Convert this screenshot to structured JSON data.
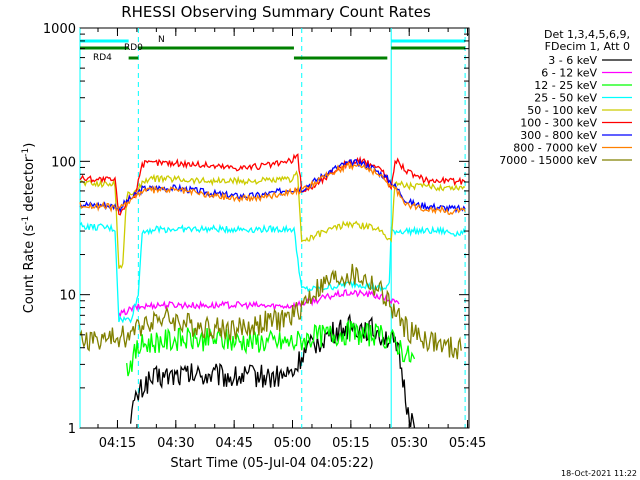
{
  "chart_data": {
    "type": "line",
    "title": "RHESSI Observing Summary Count Rates",
    "xlabel": "Start Time (05-Jul-04 04:05:22)",
    "ylabel_main": "Count Rate (s",
    "ylabel_sup1": "-1",
    "ylabel_mid": " detector",
    "ylabel_sup2": "-1",
    "ylabel_end": ")",
    "y_scale": "log",
    "ylim": [
      1,
      1000
    ],
    "x_unit": "minutes after 04:05:22",
    "xlim": [
      0,
      100
    ],
    "x_ticks": [
      {
        "label": "04:15",
        "x": 9.63
      },
      {
        "label": "04:30",
        "x": 24.63
      },
      {
        "label": "04:45",
        "x": 39.63
      },
      {
        "label": "05:00",
        "x": 54.63
      },
      {
        "label": "05:15",
        "x": 69.63
      },
      {
        "label": "05:30",
        "x": 84.63
      },
      {
        "label": "05:45",
        "x": 99.63
      }
    ],
    "y_ticks": [
      {
        "label": "1",
        "v": 1
      },
      {
        "label": "10",
        "v": 10
      },
      {
        "label": "100",
        "v": 100
      },
      {
        "label": "1000",
        "v": 1000
      }
    ],
    "legend_header": [
      "Det 1,3,4,5,6,9,",
      "FDecim 1, Att 0"
    ],
    "legend_position": "right",
    "series": [
      {
        "name": "3 - 6 keV",
        "color": "#000000",
        "points": [
          [
            13,
            1.3
          ],
          [
            14,
            1.5
          ],
          [
            15,
            1.8
          ],
          [
            17,
            2.2
          ],
          [
            20,
            2.4
          ],
          [
            25,
            2.5
          ],
          [
            30,
            2.5
          ],
          [
            35,
            2.5
          ],
          [
            40,
            2.4
          ],
          [
            45,
            2.5
          ],
          [
            50,
            2.4
          ],
          [
            55,
            2.6
          ],
          [
            57,
            3.5
          ],
          [
            60,
            4.2
          ],
          [
            63,
            4.8
          ],
          [
            66,
            5.3
          ],
          [
            69,
            5.7
          ],
          [
            72,
            5.7
          ],
          [
            75,
            5.5
          ],
          [
            78,
            5.0
          ],
          [
            80,
            4.5
          ],
          [
            82,
            3.5
          ],
          [
            84,
            1.5
          ],
          [
            86,
            1.0
          ]
        ]
      },
      {
        "name": "6 - 12 keV",
        "color": "#ff00ff",
        "points": [
          [
            10,
            7.0
          ],
          [
            12,
            7.5
          ],
          [
            14,
            8.0
          ],
          [
            17,
            8.2
          ],
          [
            20,
            8.4
          ],
          [
            25,
            8.4
          ],
          [
            30,
            8.3
          ],
          [
            35,
            8.3
          ],
          [
            40,
            8.4
          ],
          [
            45,
            8.3
          ],
          [
            50,
            8.2
          ],
          [
            55,
            8.3
          ],
          [
            57,
            8.6
          ],
          [
            60,
            9.0
          ],
          [
            63,
            9.5
          ],
          [
            66,
            10.0
          ],
          [
            69,
            10.3
          ],
          [
            72,
            10.2
          ],
          [
            75,
            10.0
          ],
          [
            78,
            9.5
          ],
          [
            80,
            9.0
          ],
          [
            82,
            8.5
          ]
        ]
      },
      {
        "name": "12 - 25 keV",
        "color": "#00ff00",
        "points": [
          [
            12,
            2.8
          ],
          [
            13,
            3.1
          ],
          [
            15,
            4.0
          ],
          [
            17,
            4.3
          ],
          [
            20,
            4.5
          ],
          [
            25,
            4.6
          ],
          [
            30,
            4.6
          ],
          [
            35,
            4.6
          ],
          [
            40,
            4.5
          ],
          [
            45,
            4.5
          ],
          [
            50,
            4.4
          ],
          [
            55,
            4.4
          ],
          [
            57,
            4.6
          ],
          [
            60,
            4.8
          ],
          [
            63,
            5.0
          ],
          [
            66,
            5.1
          ],
          [
            69,
            5.2
          ],
          [
            72,
            5.1
          ],
          [
            75,
            5.0
          ],
          [
            78,
            4.8
          ],
          [
            80,
            4.6
          ],
          [
            82,
            4.2
          ],
          [
            84,
            3.5
          ],
          [
            86,
            3.3
          ]
        ]
      },
      {
        "name": "25 - 50 keV",
        "color": "#00ffff",
        "points": [
          [
            0,
            33
          ],
          [
            3,
            32
          ],
          [
            6,
            32
          ],
          [
            9,
            31
          ],
          [
            10,
            6.5
          ],
          [
            13,
            6.5
          ],
          [
            15,
            10.0
          ],
          [
            16,
            30
          ],
          [
            20,
            31
          ],
          [
            25,
            31
          ],
          [
            30,
            31
          ],
          [
            35,
            31
          ],
          [
            40,
            31
          ],
          [
            45,
            31
          ],
          [
            50,
            31
          ],
          [
            55,
            31
          ],
          [
            57,
            11
          ],
          [
            60,
            11
          ],
          [
            65,
            11.5
          ],
          [
            69,
            12
          ],
          [
            72,
            12
          ],
          [
            75,
            11.5
          ],
          [
            78,
            11
          ],
          [
            79.5,
            12
          ],
          [
            80,
            30
          ],
          [
            85,
            30
          ],
          [
            90,
            30
          ],
          [
            93,
            30
          ],
          [
            96,
            29
          ],
          [
            99,
            29
          ]
        ]
      },
      {
        "name": "50 - 100 keV",
        "color": "#cccc00",
        "points": [
          [
            0,
            70
          ],
          [
            3,
            68
          ],
          [
            6,
            68
          ],
          [
            9,
            68
          ],
          [
            10,
            16
          ],
          [
            11,
            17
          ],
          [
            12,
            55
          ],
          [
            13,
            58
          ],
          [
            15,
            60
          ],
          [
            16,
            72
          ],
          [
            20,
            74
          ],
          [
            25,
            74
          ],
          [
            30,
            72
          ],
          [
            35,
            71
          ],
          [
            40,
            71
          ],
          [
            45,
            71
          ],
          [
            50,
            72
          ],
          [
            54,
            73
          ],
          [
            56,
            80
          ],
          [
            57,
            25
          ],
          [
            60,
            27
          ],
          [
            63,
            30
          ],
          [
            66,
            32
          ],
          [
            69,
            34
          ],
          [
            72,
            33
          ],
          [
            75,
            32
          ],
          [
            78,
            30
          ],
          [
            80,
            25
          ],
          [
            81,
            70
          ],
          [
            84,
            66
          ],
          [
            87,
            65
          ],
          [
            90,
            64
          ],
          [
            93,
            64
          ],
          [
            96,
            64
          ],
          [
            99,
            64
          ]
        ]
      },
      {
        "name": "100 - 300 keV",
        "color": "#ff0000",
        "points": [
          [
            0,
            75
          ],
          [
            3,
            74
          ],
          [
            6,
            73
          ],
          [
            9,
            72
          ],
          [
            10,
            40
          ],
          [
            11,
            42
          ],
          [
            12,
            52
          ],
          [
            14,
            55
          ],
          [
            16,
            95
          ],
          [
            20,
            98
          ],
          [
            25,
            97
          ],
          [
            30,
            95
          ],
          [
            35,
            92
          ],
          [
            40,
            90
          ],
          [
            45,
            91
          ],
          [
            50,
            95
          ],
          [
            54,
            100
          ],
          [
            56,
            110
          ],
          [
            57,
            60
          ],
          [
            60,
            65
          ],
          [
            63,
            75
          ],
          [
            66,
            88
          ],
          [
            69,
            97
          ],
          [
            72,
            100
          ],
          [
            75,
            95
          ],
          [
            78,
            85
          ],
          [
            80,
            60
          ],
          [
            81,
            105
          ],
          [
            84,
            85
          ],
          [
            87,
            75
          ],
          [
            90,
            72
          ],
          [
            93,
            72
          ],
          [
            96,
            71
          ],
          [
            99,
            70
          ]
        ]
      },
      {
        "name": "300 - 800 keV",
        "color": "#0000ff",
        "points": [
          [
            0,
            48
          ],
          [
            3,
            47
          ],
          [
            6,
            47
          ],
          [
            9,
            46
          ],
          [
            10,
            44
          ],
          [
            12,
            50
          ],
          [
            14,
            55
          ],
          [
            16,
            62
          ],
          [
            20,
            63
          ],
          [
            25,
            63
          ],
          [
            30,
            60
          ],
          [
            35,
            57
          ],
          [
            40,
            55
          ],
          [
            45,
            55
          ],
          [
            50,
            58
          ],
          [
            54,
            62
          ],
          [
            57,
            62
          ],
          [
            60,
            70
          ],
          [
            63,
            80
          ],
          [
            66,
            90
          ],
          [
            69,
            97
          ],
          [
            72,
            98
          ],
          [
            75,
            90
          ],
          [
            78,
            78
          ],
          [
            80,
            70
          ],
          [
            82,
            60
          ],
          [
            84,
            50
          ],
          [
            87,
            47
          ],
          [
            90,
            46
          ],
          [
            93,
            45
          ],
          [
            96,
            44
          ],
          [
            99,
            44
          ]
        ]
      },
      {
        "name": "800 - 7000 keV",
        "color": "#ff8000",
        "points": [
          [
            0,
            47
          ],
          [
            3,
            46
          ],
          [
            6,
            46
          ],
          [
            9,
            45
          ],
          [
            10,
            43
          ],
          [
            12,
            49
          ],
          [
            14,
            54
          ],
          [
            16,
            60
          ],
          [
            20,
            61
          ],
          [
            25,
            61
          ],
          [
            30,
            58
          ],
          [
            35,
            55
          ],
          [
            40,
            53
          ],
          [
            45,
            53
          ],
          [
            50,
            56
          ],
          [
            54,
            60
          ],
          [
            57,
            60
          ],
          [
            60,
            68
          ],
          [
            63,
            77
          ],
          [
            66,
            86
          ],
          [
            69,
            93
          ],
          [
            72,
            93
          ],
          [
            75,
            86
          ],
          [
            78,
            74
          ],
          [
            80,
            66
          ],
          [
            82,
            57
          ],
          [
            84,
            48
          ],
          [
            87,
            45
          ],
          [
            90,
            44
          ],
          [
            93,
            43
          ],
          [
            96,
            42
          ],
          [
            99,
            42
          ]
        ]
      },
      {
        "name": "7000 - 15000 keV",
        "color": "#808000",
        "points": [
          [
            0,
            4.5
          ],
          [
            3,
            4.6
          ],
          [
            6,
            4.6
          ],
          [
            9,
            4.7
          ],
          [
            10,
            4.8
          ],
          [
            13,
            5.0
          ],
          [
            16,
            6.0
          ],
          [
            18,
            6.5
          ],
          [
            20,
            6.8
          ],
          [
            24,
            6.5
          ],
          [
            28,
            6.0
          ],
          [
            32,
            5.8
          ],
          [
            36,
            5.6
          ],
          [
            40,
            5.5
          ],
          [
            44,
            5.8
          ],
          [
            48,
            6.2
          ],
          [
            52,
            6.5
          ],
          [
            55,
            7.0
          ],
          [
            58,
            9.0
          ],
          [
            61,
            11
          ],
          [
            64,
            12.5
          ],
          [
            67,
            13.5
          ],
          [
            69,
            14
          ],
          [
            72,
            13.5
          ],
          [
            75,
            12
          ],
          [
            78,
            10
          ],
          [
            80,
            8
          ],
          [
            82,
            6.5
          ],
          [
            84,
            5.5
          ],
          [
            86,
            5.0
          ],
          [
            90,
            4.5
          ],
          [
            94,
            4.0
          ],
          [
            98,
            3.8
          ]
        ]
      }
    ],
    "annotations": {
      "N": {
        "label": "N",
        "color": "#00ffff",
        "segments": [
          [
            0,
            12.5
          ],
          [
            80,
            99
          ]
        ]
      },
      "RD0": {
        "label": "RD0",
        "color": "#008000",
        "segments": [
          [
            0,
            12.5
          ],
          [
            15,
            55
          ],
          [
            80,
            99
          ]
        ]
      },
      "RD4": {
        "label": "RD4",
        "color": "#008000",
        "segments": [
          [
            12.5,
            15
          ],
          [
            55,
            79
          ]
        ]
      },
      "solid_vlines": [
        0,
        80
      ],
      "dashed_vlines": [
        15,
        57,
        99
      ]
    }
  },
  "footer": {
    "date": "18-Oct-2021 11:22"
  }
}
